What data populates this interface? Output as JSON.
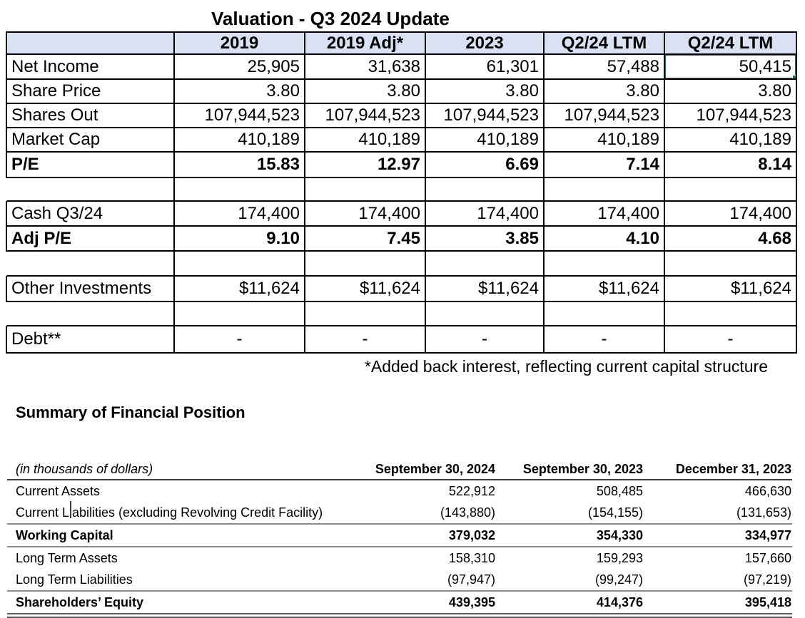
{
  "valuation_table": {
    "title": "Valuation - Q3 2024 Update",
    "columns": [
      "",
      "2019",
      "2019 Adj*",
      "2023",
      "Q2/24 LTM",
      "Q2/24 LTM"
    ],
    "rows": [
      {
        "label": "Net Income",
        "values": [
          "25,905",
          "31,638",
          "61,301",
          "57,488",
          "50,415"
        ]
      },
      {
        "label": "Share Price",
        "values": [
          "3.80",
          "3.80",
          "3.80",
          "3.80",
          "3.80"
        ]
      },
      {
        "label": "Shares Out",
        "values": [
          "107,944,523",
          "107,944,523",
          "107,944,523",
          "107,944,523",
          "107,944,523"
        ]
      },
      {
        "label": "Market Cap",
        "values": [
          "410,189",
          "410,189",
          "410,189",
          "410,189",
          "410,189"
        ]
      },
      {
        "label": "P/E",
        "values": [
          "15.83",
          "12.97",
          "6.69",
          "7.14",
          "8.14"
        ],
        "bold": true
      },
      {
        "blank": true
      },
      {
        "label": "Cash Q3/24",
        "values": [
          "174,400",
          "174,400",
          "174,400",
          "174,400",
          "174,400"
        ]
      },
      {
        "label": "Adj P/E",
        "values": [
          "9.10",
          "7.45",
          "3.85",
          "4.10",
          "4.68"
        ],
        "bold": true
      },
      {
        "blank": true
      },
      {
        "label": "Other Investments",
        "values": [
          "$11,624",
          "$11,624",
          "$11,624",
          "$11,624",
          "$11,624"
        ]
      },
      {
        "blank": true
      },
      {
        "label": "Debt**",
        "values": [
          "-",
          "-",
          "-",
          "-",
          "-"
        ],
        "dash": true
      }
    ],
    "selected_cell": {
      "row_index": 0,
      "value_index": 4,
      "value": "50,415"
    },
    "footnote": "*Added back interest, reflecting current capital structure"
  },
  "financial_position": {
    "heading": "Summary of Financial Position",
    "unit_note": "(in thousands of dollars)",
    "columns": [
      "September 30, 2024",
      "September 30, 2023",
      "December 31, 2023"
    ],
    "rows": [
      {
        "label": "Current Assets",
        "values": [
          "522,912",
          "508,485",
          "466,630"
        ]
      },
      {
        "label": "Current Liabilities (excluding Revolving Credit Facility)",
        "values": [
          "(143,880)",
          "(154,155)",
          "(131,653)"
        ]
      },
      {
        "label": "Working Capital",
        "values": [
          "379,032",
          "354,330",
          "334,977"
        ],
        "bold": true,
        "rule_above": true,
        "rule_below": true
      },
      {
        "label": "Long Term Assets",
        "values": [
          "158,310",
          "159,293",
          "157,660"
        ]
      },
      {
        "label": "Long Term Liabilities",
        "values": [
          "(97,947)",
          "(99,247)",
          "(97,219)"
        ]
      },
      {
        "label": "Shareholders’ Equity",
        "values": [
          "439,395",
          "414,376",
          "395,418"
        ],
        "bold": true,
        "rule_above": true,
        "double_rule_below": true
      }
    ]
  },
  "colors": {
    "header_fill": "#d9e1f2",
    "selection_green": "#217346",
    "grid_line": "#000000",
    "rule_gray": "#8c8c8c",
    "header_rule": "#404040",
    "double_rule": "#595959"
  }
}
